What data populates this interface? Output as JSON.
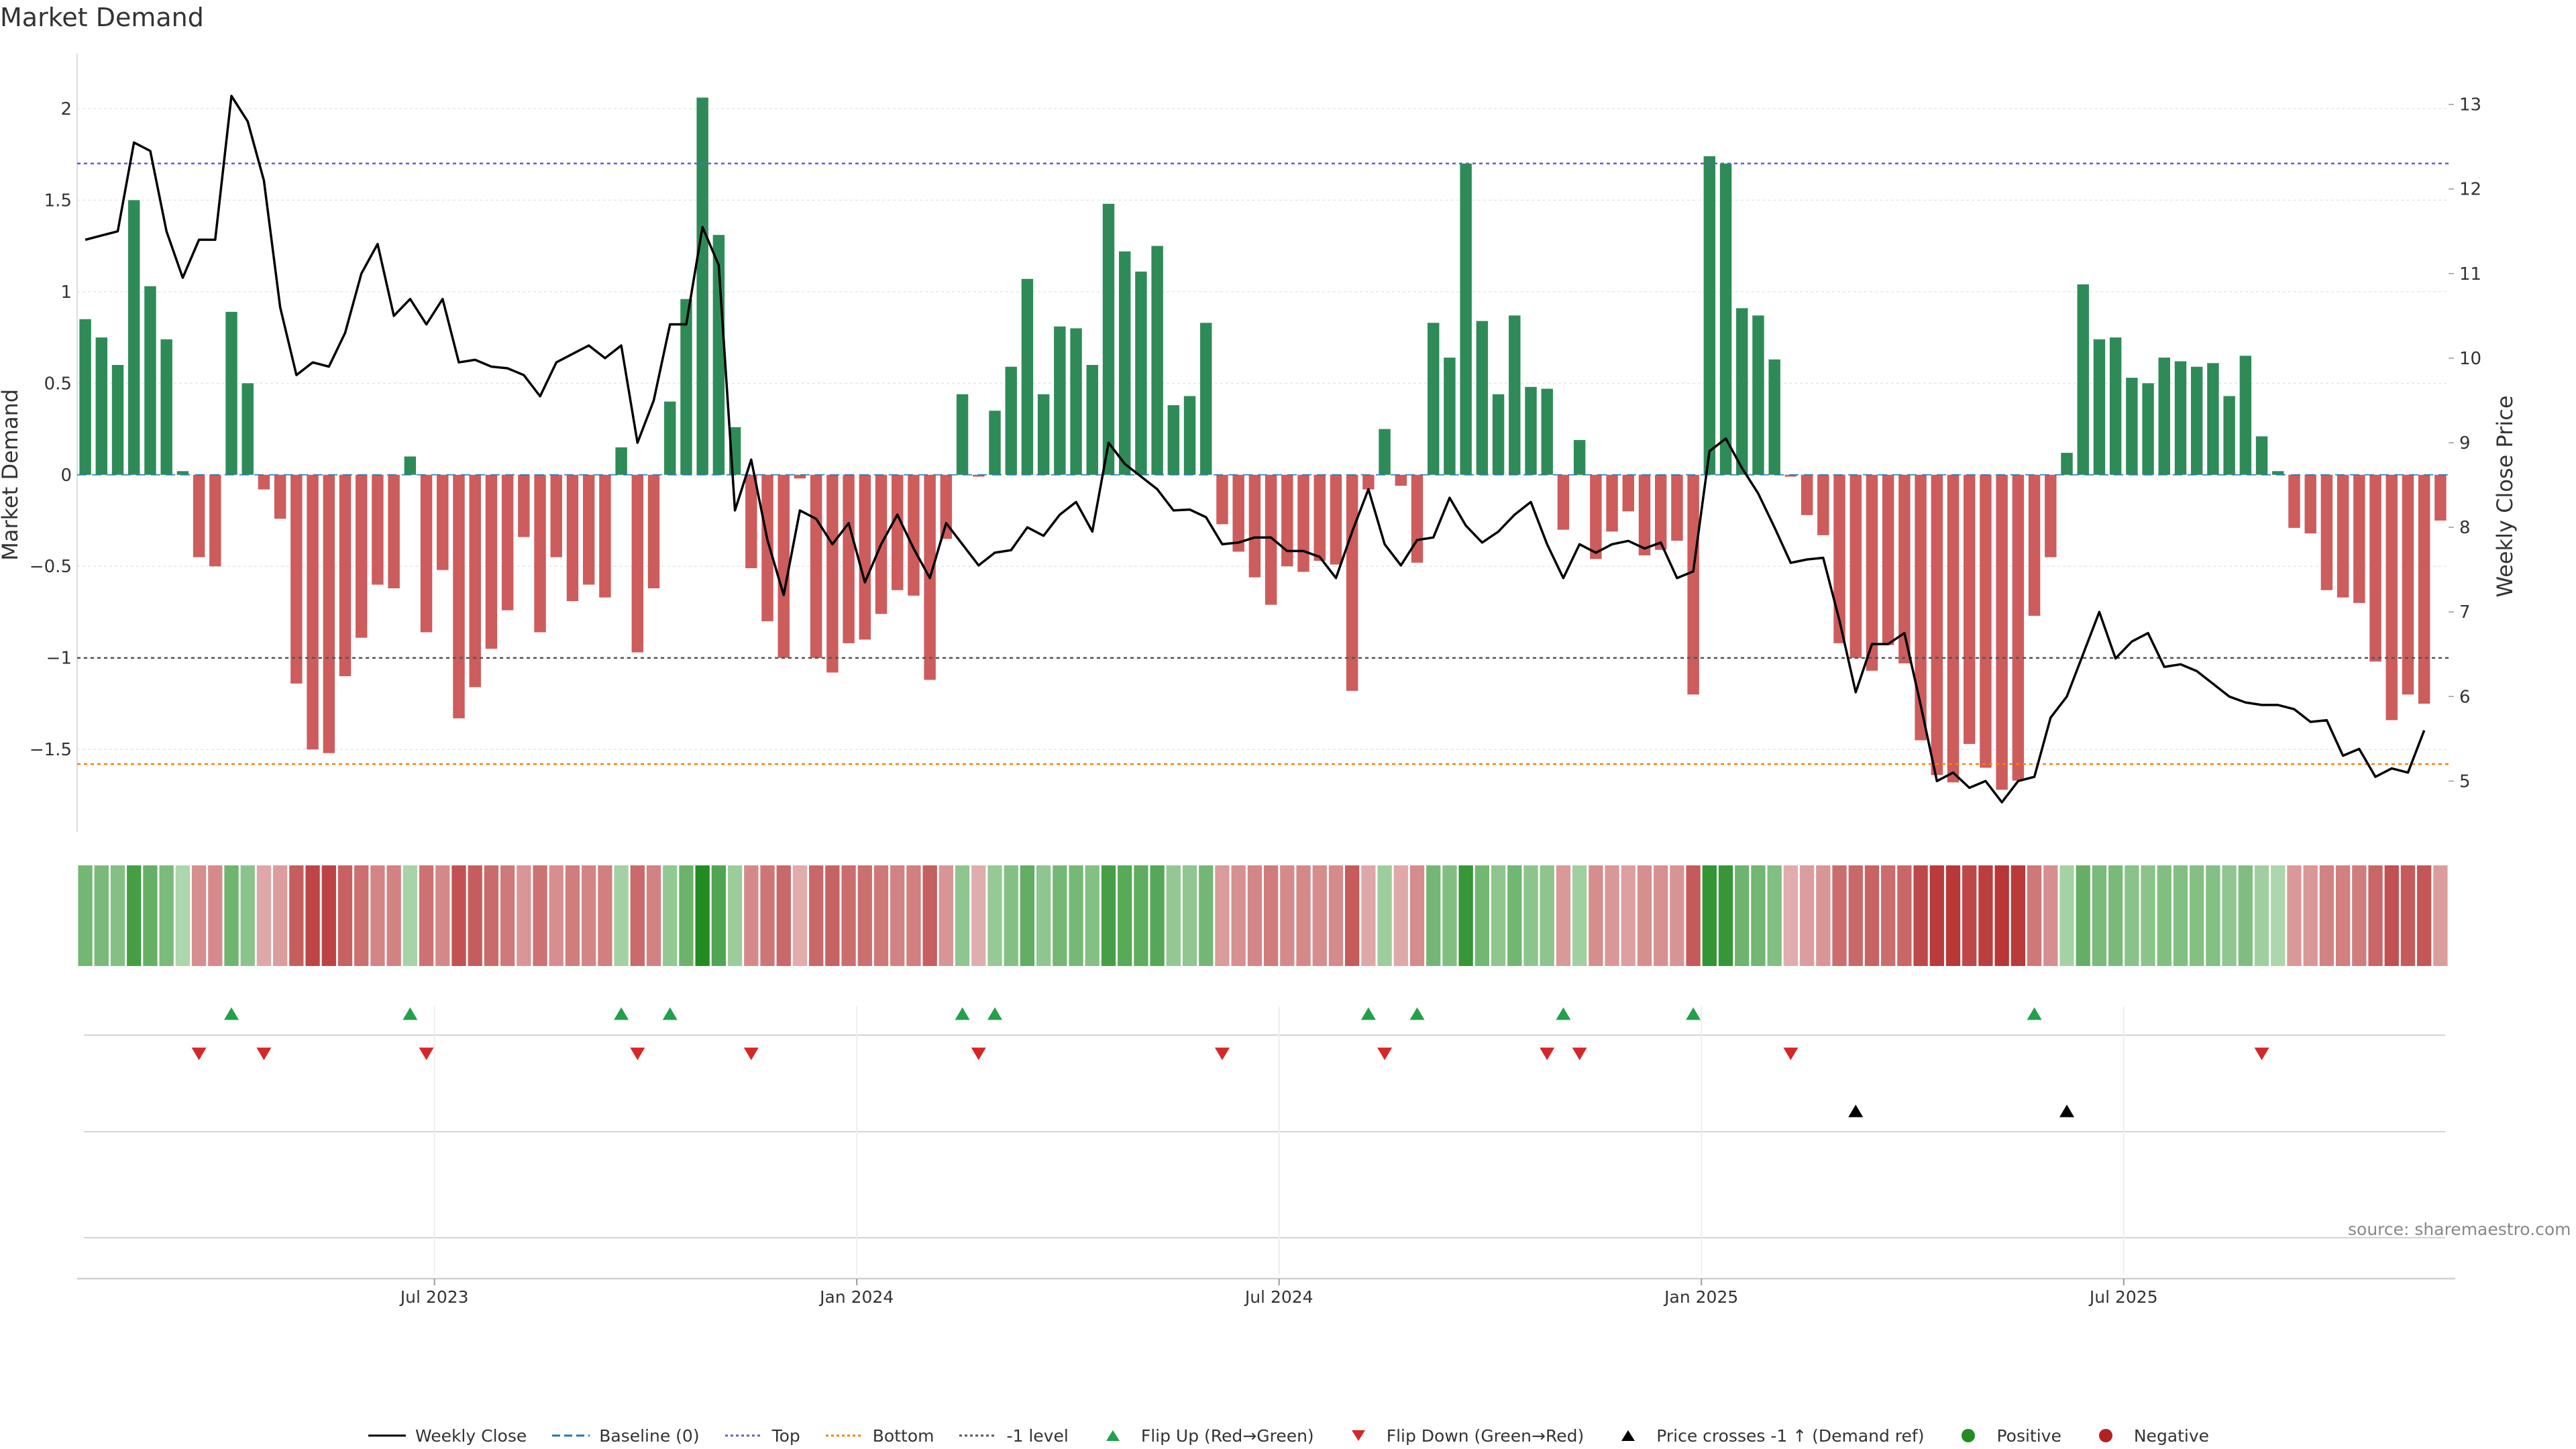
{
  "title": "Market Demand",
  "source": "source: sharemaestro.com",
  "colors": {
    "positive": "#2e8b57",
    "negative": "#cd5c5c",
    "price": "#000000",
    "baseline": "#1f77b4",
    "top": "#6a5acd",
    "bottom": "#ff7f0e",
    "level": "#555555",
    "flip_up": "#22a04a",
    "flip_down": "#d62728",
    "cross": "#000000"
  },
  "chart_data": {
    "type": "bar",
    "title": "Market Demand",
    "ylabel_left": "Market Demand",
    "ylabel_right": "Weekly Close Price",
    "ylim_left": [
      -1.95,
      2.3
    ],
    "ylim_right": [
      4.4,
      13.6
    ],
    "yticks_left": [
      2,
      1.5,
      1,
      0.5,
      0,
      -0.5,
      -1,
      -1.5
    ],
    "ytick_labels_left": [
      "2",
      "1.5",
      "1",
      "0.5",
      "0",
      "−0.5",
      "−1",
      "−1.5"
    ],
    "yticks_right": [
      13,
      12,
      11,
      10,
      9,
      8,
      7,
      6,
      5
    ],
    "x_ticks": [
      {
        "index": 21.5,
        "label": "Jul 2023"
      },
      {
        "index": 47.5,
        "label": "Jan 2024"
      },
      {
        "index": 73.5,
        "label": "Jul 2024"
      },
      {
        "index": 99.5,
        "label": "Jan 2025"
      },
      {
        "index": 125.5,
        "label": "Jul 2025"
      }
    ],
    "reference_lines": {
      "baseline": 0,
      "top": 1.7,
      "bottom": -1.58,
      "minus_one_level": -1.0
    },
    "demand": [
      0.85,
      0.75,
      0.6,
      1.5,
      1.03,
      0.74,
      0.02,
      -0.45,
      -0.5,
      0.89,
      0.5,
      -0.08,
      -0.24,
      -1.14,
      -1.5,
      -1.52,
      -1.1,
      -0.89,
      -0.6,
      -0.62,
      0.1,
      -0.86,
      -0.52,
      -1.33,
      -1.16,
      -0.95,
      -0.74,
      -0.34,
      -0.86,
      -0.45,
      -0.69,
      -0.6,
      -0.67,
      0.15,
      -0.97,
      -0.62,
      0.4,
      0.96,
      2.06,
      1.31,
      0.26,
      -0.51,
      -0.8,
      -1.0,
      -0.02,
      -1.0,
      -1.08,
      -0.92,
      -0.9,
      -0.76,
      -0.63,
      -0.66,
      -1.12,
      -0.35,
      0.44,
      -0.01,
      0.35,
      0.59,
      1.07,
      0.44,
      0.81,
      0.8,
      0.6,
      1.48,
      1.22,
      1.11,
      1.25,
      0.38,
      0.43,
      0.83,
      -0.27,
      -0.42,
      -0.56,
      -0.71,
      -0.5,
      -0.53,
      -0.47,
      -0.49,
      -1.18,
      -0.08,
      0.25,
      -0.06,
      -0.48,
      0.83,
      0.64,
      1.7,
      0.84,
      0.44,
      0.87,
      0.48,
      0.47,
      -0.3,
      0.19,
      -0.46,
      -0.31,
      -0.2,
      -0.44,
      -0.41,
      -0.36,
      -1.2,
      1.74,
      1.7,
      0.91,
      0.87,
      0.63,
      -0.01,
      -0.22,
      -0.33,
      -0.92,
      -1.0,
      -1.07,
      -0.93,
      -1.03,
      -1.45,
      -1.64,
      -1.68,
      -1.47,
      -1.6,
      -1.72,
      -1.67,
      -0.77,
      -0.45,
      0.12,
      1.04,
      0.74,
      0.75,
      0.53,
      0.5,
      0.64,
      0.62,
      0.59,
      0.61,
      0.43,
      0.65,
      0.21,
      0.02,
      -0.29,
      -0.32,
      -0.63,
      -0.67,
      -0.7,
      -1.02,
      -1.34,
      -1.2,
      -1.25,
      -0.25
    ],
    "weekly_close": [
      11.4,
      11.45,
      11.5,
      12.55,
      12.45,
      11.5,
      10.95,
      11.4,
      11.4,
      13.1,
      12.8,
      12.1,
      10.6,
      9.8,
      9.95,
      9.9,
      10.3,
      11.0,
      11.35,
      10.5,
      10.7,
      10.4,
      10.7,
      9.95,
      9.98,
      9.9,
      9.88,
      9.8,
      9.55,
      9.95,
      10.05,
      10.15,
      10.0,
      10.15,
      9.0,
      9.5,
      10.4,
      10.4,
      11.55,
      11.1,
      8.2,
      8.8,
      7.85,
      7.2,
      8.2,
      8.1,
      7.8,
      8.05,
      7.35,
      7.8,
      8.15,
      7.75,
      7.4,
      8.05,
      7.8,
      7.55,
      7.7,
      7.73,
      8.0,
      7.9,
      8.15,
      8.3,
      7.95,
      9.0,
      8.75,
      8.6,
      8.45,
      8.2,
      8.21,
      8.12,
      7.8,
      7.82,
      7.88,
      7.88,
      7.72,
      7.72,
      7.65,
      7.4,
      7.95,
      8.45,
      7.8,
      7.55,
      7.85,
      7.88,
      8.35,
      8.02,
      7.82,
      7.95,
      8.15,
      8.3,
      7.8,
      7.4,
      7.8,
      7.7,
      7.8,
      7.84,
      7.75,
      7.82,
      7.4,
      7.48,
      8.9,
      9.05,
      8.7,
      8.4,
      8.0,
      7.58,
      7.62,
      7.64,
      6.9,
      6.05,
      6.62,
      6.62,
      6.75,
      5.9,
      5.0,
      5.1,
      4.92,
      5.0,
      4.75,
      5.0,
      5.05,
      5.75,
      6.0,
      6.5,
      7.0,
      6.45,
      6.65,
      6.75,
      6.35,
      6.38,
      6.3,
      6.15,
      6.0,
      5.93,
      5.9,
      5.9,
      5.85,
      5.7,
      5.72,
      5.3,
      5.38,
      5.05,
      5.15,
      5.1,
      5.6
    ],
    "flip_up_indices": [
      9,
      20,
      33,
      36,
      54,
      56,
      79,
      82,
      91,
      99,
      120
    ],
    "flip_down_indices": [
      7,
      11,
      21,
      34,
      41,
      55,
      70,
      80,
      90,
      92,
      105,
      134
    ],
    "cross_indices": [
      109,
      122
    ]
  },
  "legend": {
    "items": [
      {
        "label": "Weekly Close",
        "symbol": "line-solid",
        "color": "#000000"
      },
      {
        "label": "Baseline (0)",
        "symbol": "line-dashed",
        "color": "#1f77b4"
      },
      {
        "label": "Top",
        "symbol": "line-dotted",
        "color": "#6a5acd"
      },
      {
        "label": "Bottom",
        "symbol": "line-dotted",
        "color": "#ff7f0e"
      },
      {
        "label": "-1 level",
        "symbol": "line-dotted",
        "color": "#555555"
      },
      {
        "label": "Flip Up (Red→Green)",
        "symbol": "triangle-up",
        "color": "#22a04a"
      },
      {
        "label": "Flip Down (Green→Red)",
        "symbol": "triangle-down",
        "color": "#d62728"
      },
      {
        "label": "Price crosses -1 ↑ (Demand ref)",
        "symbol": "triangle-up",
        "color": "#000000"
      },
      {
        "label": "Positive",
        "symbol": "dot",
        "color": "#228b22"
      },
      {
        "label": "Negative",
        "symbol": "dot",
        "color": "#b22222"
      }
    ]
  }
}
